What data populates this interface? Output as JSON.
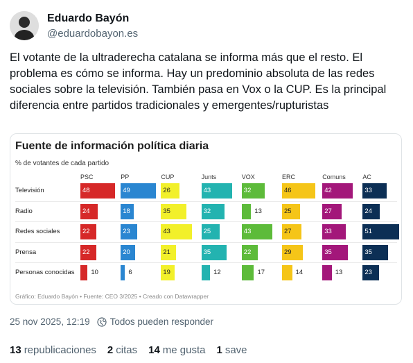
{
  "author": {
    "name": "Eduardo Bayón",
    "handle": "@eduardobayon.es"
  },
  "post": {
    "text": "El votante de la ultraderecha catalana se informa más que el resto. El problema es cómo se informa. Hay un predominio absoluta de las redes sociales sobre la televisión. También pasa en Vox o la CUP. Es la principal diferencia entre partidos tradicionales y emergentes/rupturistas"
  },
  "chart_data": {
    "type": "bar",
    "title": "Fuente de información política diaria",
    "subtitle": "% de votantes de cada partido",
    "footer": "Gráfico: Eduardo Bayón • Fuente: CEO 3/2025 • Creado con Datawrapper",
    "columns": [
      {
        "name": "PSC",
        "color": "#d62828"
      },
      {
        "name": "PP",
        "color": "#2a86d1"
      },
      {
        "name": "CUP",
        "color": "#f2f02a"
      },
      {
        "name": "Junts",
        "color": "#23b3b0"
      },
      {
        "name": "VOX",
        "color": "#5dbb3a"
      },
      {
        "name": "ERC",
        "color": "#f5c518"
      },
      {
        "name": "Comuns",
        "color": "#a3177a"
      },
      {
        "name": "AC",
        "color": "#0c2f55"
      }
    ],
    "rows": [
      {
        "label": "Televisión",
        "values": [
          48,
          49,
          26,
          43,
          32,
          46,
          42,
          33
        ]
      },
      {
        "label": "Radio",
        "values": [
          24,
          18,
          35,
          32,
          13,
          25,
          27,
          24
        ]
      },
      {
        "label": "Redes sociales",
        "values": [
          22,
          23,
          43,
          25,
          43,
          27,
          33,
          51
        ]
      },
      {
        "label": "Prensa",
        "values": [
          22,
          20,
          21,
          35,
          22,
          29,
          35,
          35
        ]
      },
      {
        "label": "Personas conocidas",
        "values": [
          10,
          6,
          19,
          12,
          17,
          14,
          13,
          23
        ]
      }
    ],
    "max_value": 51
  },
  "meta": {
    "timestamp": "25 nov 2025, 12:19",
    "reply_setting": "Todos pueden responder",
    "reply_icon": "globe-icon"
  },
  "stats": [
    {
      "count": "13",
      "label": "republicaciones"
    },
    {
      "count": "2",
      "label": "citas"
    },
    {
      "count": "14",
      "label": "me gusta"
    },
    {
      "count": "1",
      "label": "save"
    }
  ]
}
